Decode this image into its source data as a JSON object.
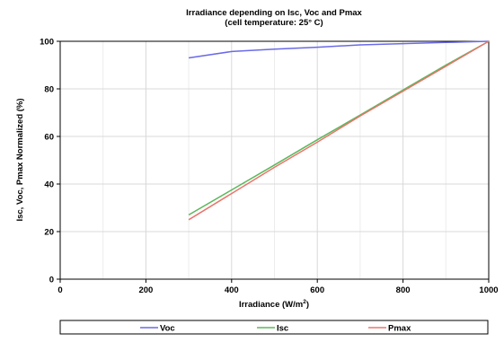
{
  "chart_data": {
    "type": "line",
    "title": "Irradiance depending on Isc, Voc and Pmax",
    "subtitle": "(cell temperature: 25° C)",
    "xlabel_prefix": "Irradiance (W/m",
    "xlabel_sup": "2",
    "xlabel_suffix": ")",
    "ylabel": "Isc, Voc, Pmax Normalized (%)",
    "xlim": [
      0,
      1000
    ],
    "ylim": [
      0,
      100
    ],
    "x_ticks": [
      0,
      200,
      400,
      600,
      800,
      1000
    ],
    "y_ticks": [
      0,
      20,
      40,
      60,
      80,
      100
    ],
    "grid": true,
    "legend_position": "bottom",
    "series": [
      {
        "name": "Voc",
        "color": "#6a6ae8",
        "x": [
          300,
          400,
          500,
          600,
          700,
          800,
          900,
          1000
        ],
        "y": [
          93,
          95.7,
          96.7,
          97.5,
          98.5,
          99,
          99.5,
          100
        ]
      },
      {
        "name": "Isc",
        "color": "#5cb85c",
        "x": [
          300,
          400,
          500,
          600,
          700,
          800,
          900,
          1000
        ],
        "y": [
          27,
          37.5,
          48,
          58.6,
          69,
          79.5,
          90,
          100
        ]
      },
      {
        "name": "Pmax",
        "color": "#e8766c",
        "x": [
          300,
          400,
          500,
          600,
          700,
          800,
          900,
          1000
        ],
        "y": [
          25,
          36,
          47,
          57.6,
          68.6,
          79,
          89.5,
          100
        ]
      }
    ]
  }
}
